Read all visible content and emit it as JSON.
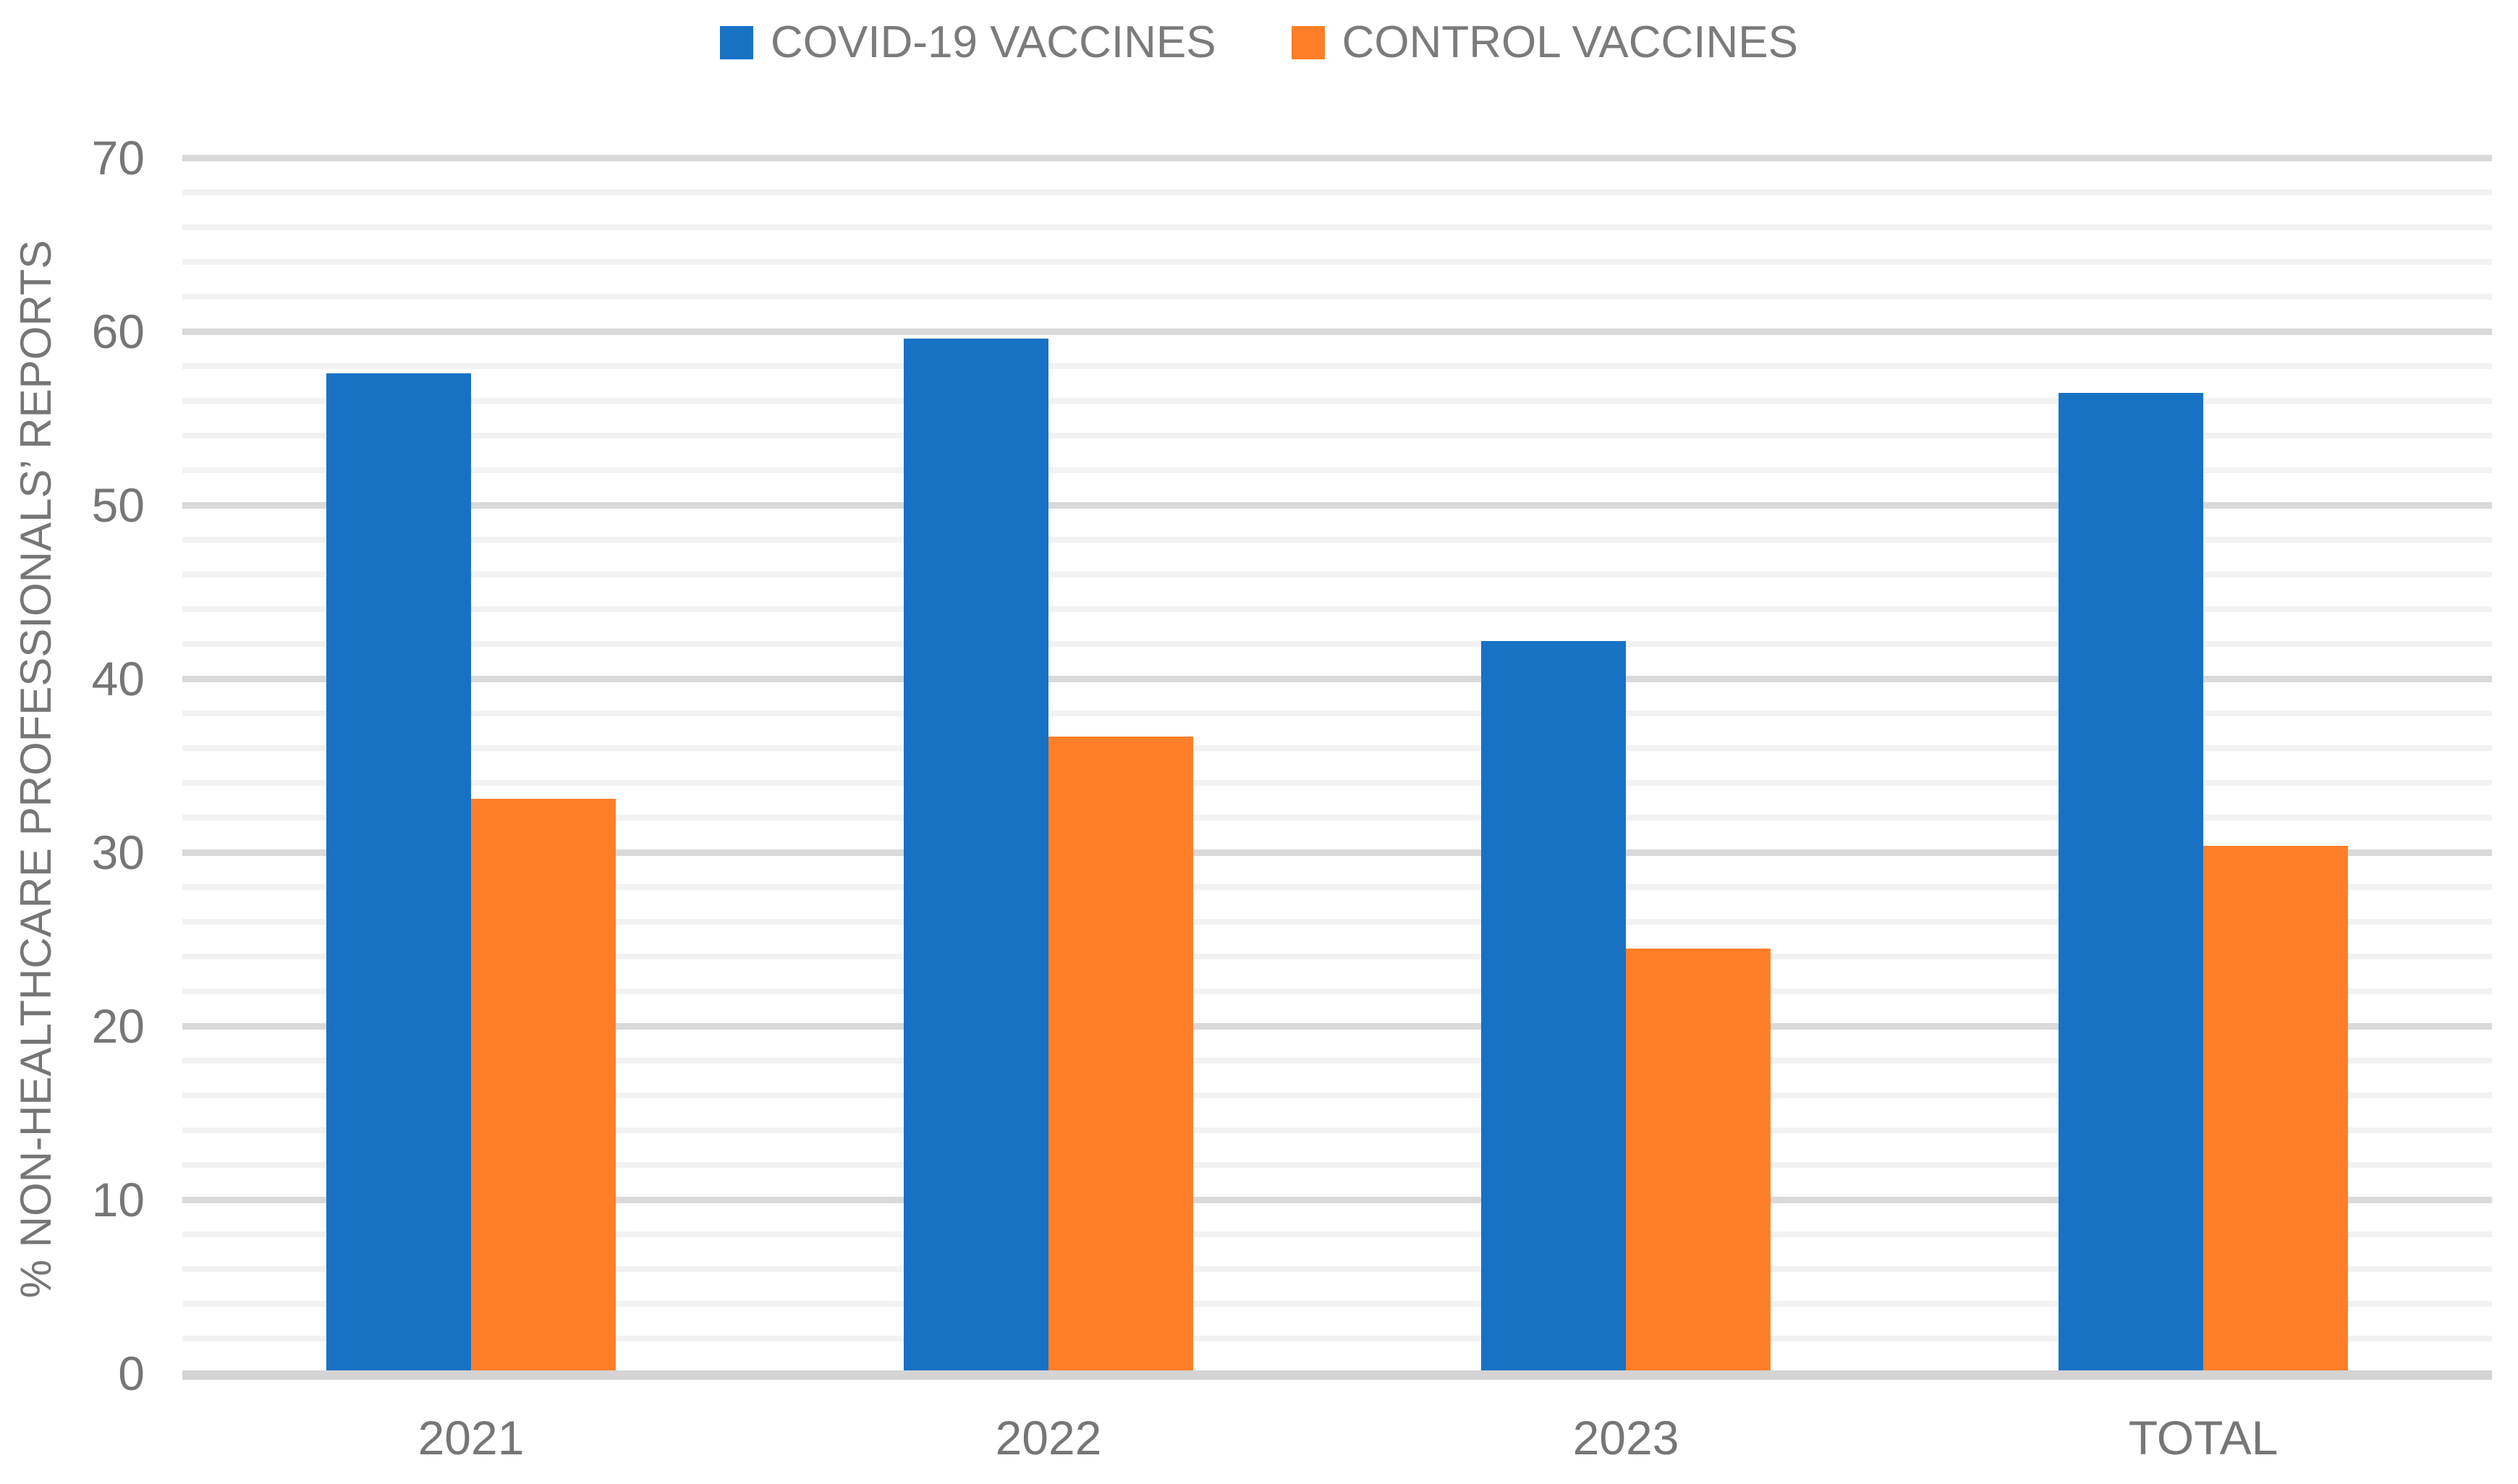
{
  "chart_data": {
    "type": "bar",
    "title": "",
    "categories": [
      "2021",
      "2022",
      "2023",
      "TOTAL"
    ],
    "series": [
      {
        "name": "COVID-19 VACCINES",
        "color": "#1772C6",
        "values": [
          57.4,
          59.4,
          42.0,
          56.3
        ]
      },
      {
        "name": "CONTROL VACCINES",
        "color": "#FF7E27",
        "values": [
          32.9,
          36.5,
          24.3,
          30.2
        ]
      }
    ],
    "xlabel": "",
    "ylabel": "% NON-HEALTHCARE PROFESSIONALS’ REPORTS",
    "ylim": [
      0,
      70
    ],
    "yticks": [
      0,
      10,
      20,
      30,
      40,
      50,
      60,
      70
    ],
    "minor_gridline_step": 2,
    "major_gridline_step": 10,
    "grid": "on",
    "legend_position": "top",
    "colors": {
      "minor_gridline": "#f2f2f2",
      "major_gridline": "#d9d9d9",
      "axis_line": "#d4d4d4",
      "tick_label": "#767676",
      "legend_text": "#7b7b7b"
    }
  }
}
